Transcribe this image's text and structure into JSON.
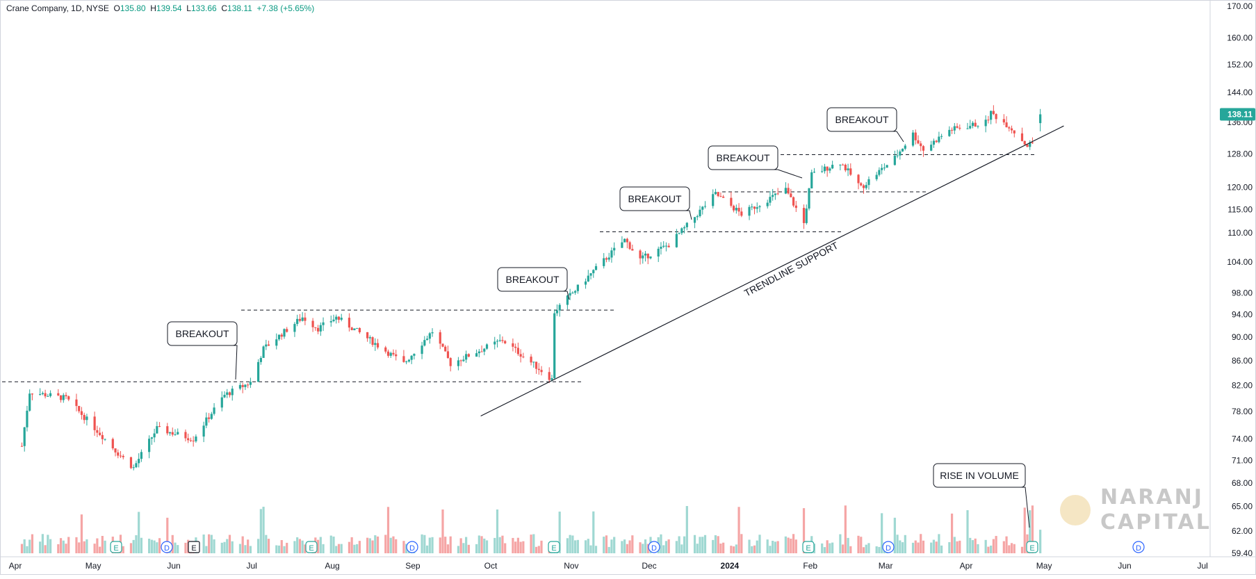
{
  "header": {
    "symbol": "Crane Company, 1D, NYSE",
    "open_label": "O",
    "open": "135.80",
    "high_label": "H",
    "high": "139.54",
    "low_label": "L",
    "low": "133.66",
    "close_label": "C",
    "close": "138.11",
    "change": "+7.38 (+5.65%)"
  },
  "colors": {
    "up": "#26a69a",
    "down": "#ef5350",
    "vol_up": "#9fd8d2",
    "vol_down": "#f5a5a5",
    "price_tag": "#26a69a",
    "event_blue": "#2962ff"
  },
  "price_axis": [
    "170.00",
    "160.00",
    "152.00",
    "144.00",
    "136.00",
    "128.00",
    "120.00",
    "115.00",
    "110.00",
    "104.00",
    "98.00",
    "94.00",
    "90.00",
    "86.00",
    "82.00",
    "78.00",
    "74.00",
    "71.00",
    "68.00",
    "65.00",
    "62.00",
    "59.40"
  ],
  "time_axis": [
    "Apr",
    "May",
    "Jun",
    "Jul",
    "Aug",
    "Sep",
    "Oct",
    "Nov",
    "Dec",
    "2024",
    "Feb",
    "Mar",
    "Apr",
    "May",
    "Jun",
    "Jul"
  ],
  "last_price_tag": "138.11",
  "annotations": {
    "breakout": "BREAKOUT",
    "trendline": "TRENDLINE SUPPORT",
    "volume": "RISE IN VOLUME"
  },
  "event_markers": {
    "earnings": "E",
    "dividend": "D"
  },
  "watermark": {
    "line1": "NARANJ",
    "line2": "CAPITAL"
  },
  "chart_data": {
    "type": "candlestick",
    "title": "Crane Company, 1D, NYSE",
    "y_scale": "log",
    "ylim": [
      59.4,
      170
    ],
    "key_levels": [
      82.6,
      94.8,
      110.2,
      119.0,
      127.8
    ],
    "trendline": {
      "from": [
        "2023-10-10",
        80.5
      ],
      "to": [
        "2024-04-30",
        131.5
      ]
    },
    "anchors": [
      {
        "date": "2023-04-03",
        "close": 73
      },
      {
        "date": "2023-04-06",
        "close": 81
      },
      {
        "date": "2023-04-20",
        "close": 80
      },
      {
        "date": "2023-05-10",
        "close": 72
      },
      {
        "date": "2023-05-16",
        "close": 70
      },
      {
        "date": "2023-05-25",
        "close": 75.5
      },
      {
        "date": "2023-06-08",
        "close": 74
      },
      {
        "date": "2023-06-20",
        "close": 80.5
      },
      {
        "date": "2023-06-30",
        "close": 82.5
      },
      {
        "date": "2023-07-05",
        "close": 88
      },
      {
        "date": "2023-07-20",
        "close": 93.5
      },
      {
        "date": "2023-07-26",
        "close": 91.5
      },
      {
        "date": "2023-08-02",
        "close": 93.5
      },
      {
        "date": "2023-08-28",
        "close": 85.5
      },
      {
        "date": "2023-09-08",
        "close": 91
      },
      {
        "date": "2023-09-15",
        "close": 85.5
      },
      {
        "date": "2023-10-05",
        "close": 89.5
      },
      {
        "date": "2023-10-24",
        "close": 83
      },
      {
        "date": "2023-10-25",
        "close": 94.5
      },
      {
        "date": "2023-11-03",
        "close": 99
      },
      {
        "date": "2023-11-21",
        "close": 108.5
      },
      {
        "date": "2023-11-27",
        "close": 104.5
      },
      {
        "date": "2023-12-08",
        "close": 107.5
      },
      {
        "date": "2023-12-15",
        "close": 111.5
      },
      {
        "date": "2023-12-26",
        "close": 118.5
      },
      {
        "date": "2024-01-05",
        "close": 114
      },
      {
        "date": "2024-01-22",
        "close": 119.5
      },
      {
        "date": "2024-01-29",
        "close": 112
      },
      {
        "date": "2024-02-01",
        "close": 123
      },
      {
        "date": "2024-02-12",
        "close": 126
      },
      {
        "date": "2024-02-20",
        "close": 120
      },
      {
        "date": "2024-03-04",
        "close": 127
      },
      {
        "date": "2024-03-11",
        "close": 133
      },
      {
        "date": "2024-03-15",
        "close": 129
      },
      {
        "date": "2024-03-25",
        "close": 134
      },
      {
        "date": "2024-04-08",
        "close": 136
      },
      {
        "date": "2024-04-10",
        "close": 138.5
      },
      {
        "date": "2024-04-17",
        "close": 135
      },
      {
        "date": "2024-04-24",
        "close": 130
      },
      {
        "date": "2024-04-26",
        "close": 130.73
      },
      {
        "date": "2024-04-29",
        "close": 138.11
      }
    ],
    "last_bar": {
      "open": 135.8,
      "high": 139.54,
      "low": 133.66,
      "close": 138.11,
      "change": 7.38,
      "change_pct": 5.65
    }
  }
}
